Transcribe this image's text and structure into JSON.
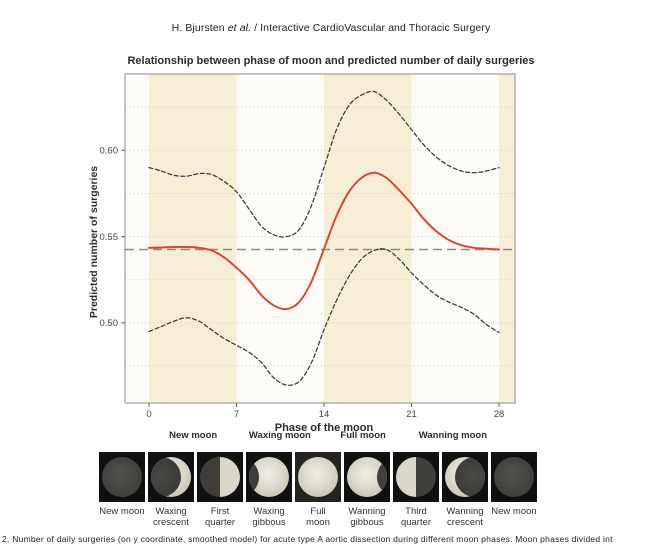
{
  "header": {
    "pre": "H. Bjursten ",
    "italic": "et al.",
    "post": " / Interactive CardioVascular and Thoracic Surgery"
  },
  "chart_data": {
    "type": "line",
    "title": "Relationship between phase of moon and predicted number of daily surgeries",
    "xlabel": "Phase of the moon",
    "ylabel": "Predicted number of surgeries",
    "x": [
      0,
      1,
      2,
      3,
      4,
      5,
      6,
      7,
      8,
      9,
      10,
      11,
      12,
      13,
      14,
      15,
      16,
      17,
      18,
      19,
      20,
      21,
      22,
      23,
      24,
      25,
      26,
      27,
      28
    ],
    "series": [
      {
        "name": "predicted-fit",
        "style": "solid-red",
        "values": [
          0.5435,
          0.5437,
          0.544,
          0.544,
          0.5435,
          0.542,
          0.538,
          0.532,
          0.525,
          0.516,
          0.51,
          0.508,
          0.512,
          0.524,
          0.543,
          0.562,
          0.576,
          0.584,
          0.587,
          0.584,
          0.577,
          0.569,
          0.56,
          0.553,
          0.548,
          0.545,
          0.5435,
          0.543,
          0.5425
        ]
      },
      {
        "name": "upper-confidence",
        "style": "dashed-dark",
        "values": [
          0.59,
          0.588,
          0.5855,
          0.585,
          0.5865,
          0.586,
          0.582,
          0.576,
          0.566,
          0.556,
          0.551,
          0.55,
          0.554,
          0.568,
          0.59,
          0.612,
          0.626,
          0.632,
          0.634,
          0.629,
          0.621,
          0.612,
          0.603,
          0.596,
          0.591,
          0.588,
          0.587,
          0.588,
          0.59
        ]
      },
      {
        "name": "lower-confidence",
        "style": "dashed-dark",
        "values": [
          0.495,
          0.498,
          0.501,
          0.503,
          0.501,
          0.496,
          0.491,
          0.487,
          0.483,
          0.477,
          0.468,
          0.464,
          0.466,
          0.477,
          0.496,
          0.513,
          0.527,
          0.537,
          0.542,
          0.5425,
          0.537,
          0.529,
          0.522,
          0.516,
          0.512,
          0.509,
          0.505,
          0.499,
          0.4945
        ]
      }
    ],
    "baseline": 0.5425,
    "x_ticks": [
      0,
      7,
      14,
      21,
      28
    ],
    "x_tick_labels": [
      "0",
      "7",
      "14",
      "21",
      "28"
    ],
    "y_ticks": [
      0.5,
      0.55,
      0.6
    ],
    "y_tick_labels": [
      "0.50",
      "0.55",
      "0.60"
    ],
    "gridlines": [
      0.475,
      0.5,
      0.525,
      0.55,
      0.575,
      0.6,
      0.625
    ],
    "xlim": [
      -1.92,
      29.28
    ],
    "ylim": [
      0.4536,
      0.6442
    ],
    "shaded_bands": [
      [
        0,
        7
      ],
      [
        14,
        21
      ],
      [
        28,
        29.28
      ]
    ],
    "legend": "none"
  },
  "moon_strip": {
    "groups": [
      {
        "label": "New moon",
        "cx_pct": 21.5
      },
      {
        "label": "Waxing moon",
        "cx_pct": 41.3
      },
      {
        "label": "Full moon",
        "cx_pct": 60.3
      },
      {
        "label": "Wanning moon",
        "cx_pct": 80.8
      }
    ],
    "phases": [
      {
        "lines": [
          "New moon"
        ],
        "shape": "new"
      },
      {
        "lines": [
          "Waxing",
          "crescent"
        ],
        "shape": "waxing-crescent"
      },
      {
        "lines": [
          "First",
          "quarter"
        ],
        "shape": "first-quarter"
      },
      {
        "lines": [
          "Waxing",
          "gibbous"
        ],
        "shape": "waxing-gibbous"
      },
      {
        "lines": [
          "Full",
          "moon"
        ],
        "shape": "full"
      },
      {
        "lines": [
          "Wanning",
          "gibbous"
        ],
        "shape": "wanning-gibbous"
      },
      {
        "lines": [
          "Third",
          "quarter"
        ],
        "shape": "third-quarter"
      },
      {
        "lines": [
          "Wanning",
          "crescent"
        ],
        "shape": "wanning-crescent"
      },
      {
        "lines": [
          "New moon"
        ],
        "shape": "new"
      }
    ]
  },
  "caption": "2. Number of daily surgeries (on y coordinate, smoothed model) for acute type A aortic dissection during different moon phases. Moon phases divided int",
  "colors": {
    "accent_red": "#e2402e",
    "band_cream": "#f7eed6",
    "panel_bg": "#fdfcf7",
    "grid": "#c9c9c9",
    "baseline_gray": "#8a8a8a",
    "ci_dark": "#3a3a3a",
    "border_gray": "#9e9e9e",
    "text_dark": "#2b2b2b",
    "tick_text": "#444444",
    "tile_bg": "#101010"
  }
}
